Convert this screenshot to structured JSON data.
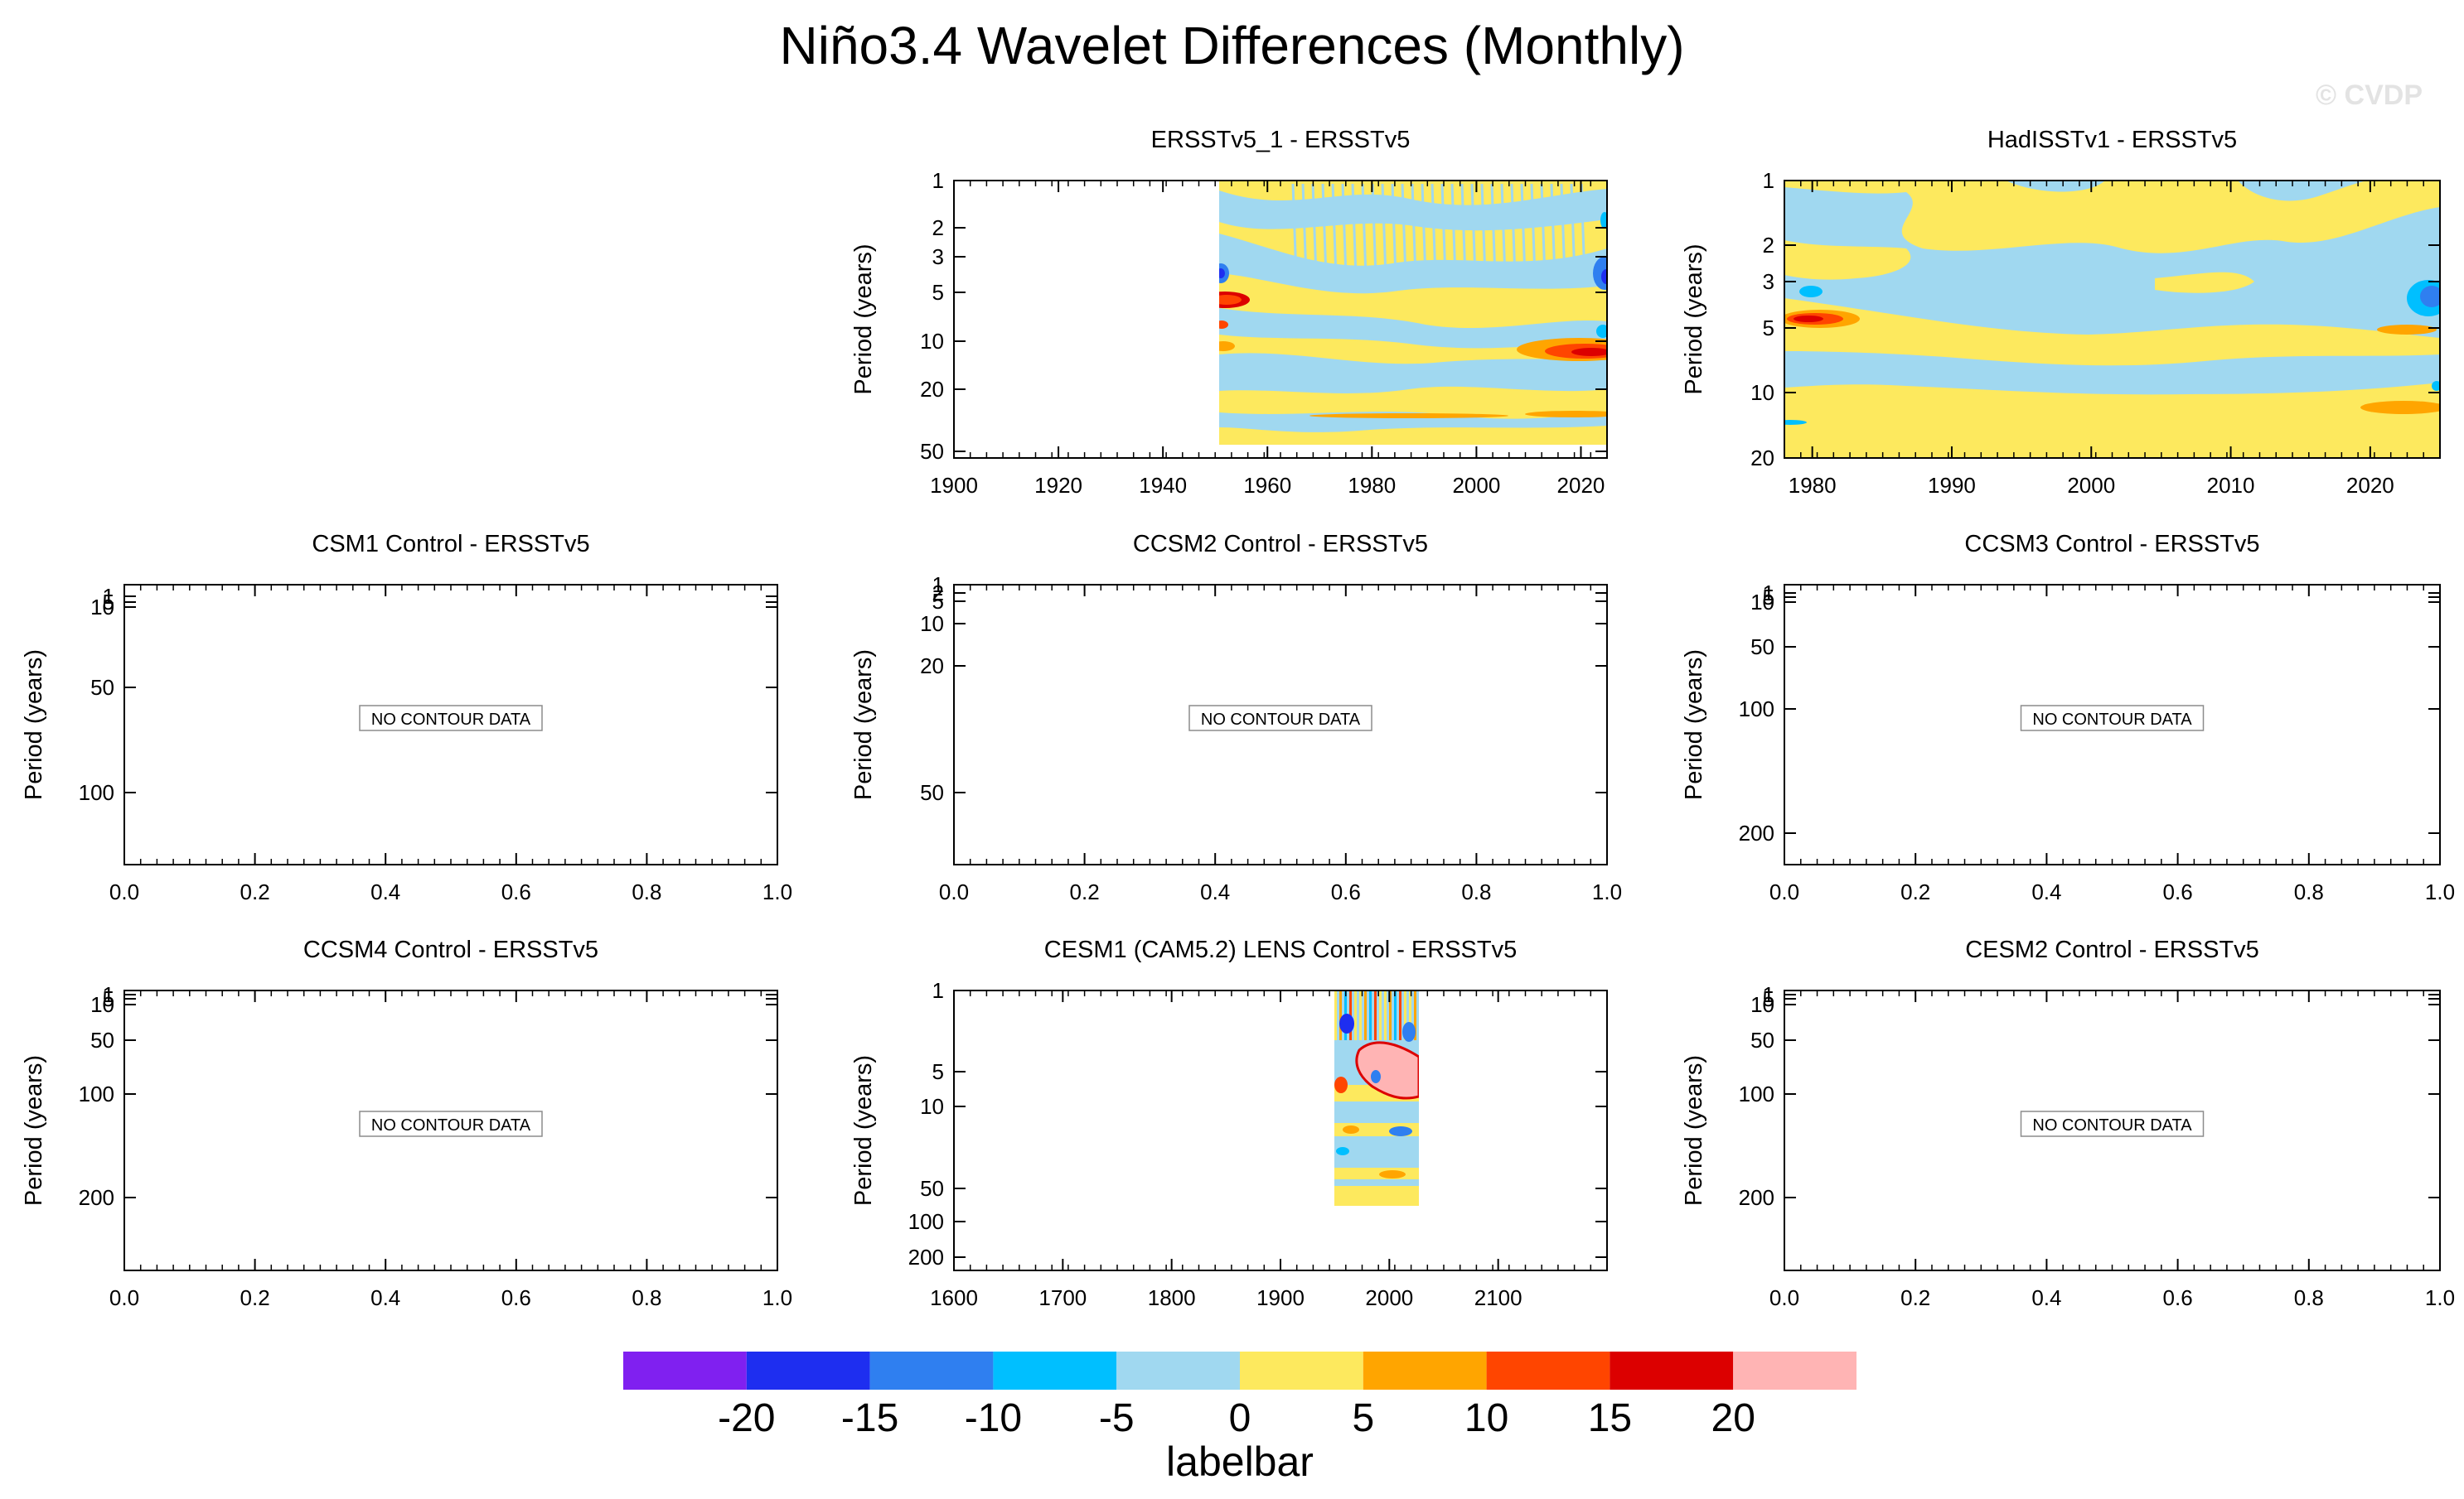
{
  "title": "Niño3.4 Wavelet Differences (Monthly)",
  "watermark": "© CVDP",
  "chart_data": [
    {
      "type": "heatmap",
      "title": "ERSSTv5_1 - ERSSTv5",
      "ylabel": "Period (years)",
      "x_ticks": [
        "1900",
        "1920",
        "1940",
        "1960",
        "1980",
        "2000",
        "2020"
      ],
      "y_ticks": [
        "1",
        "2",
        "3",
        "5",
        "10",
        "20",
        "50"
      ],
      "xlim": [
        1900,
        2025
      ],
      "ylim": [
        1,
        55
      ],
      "y_scale": "log",
      "y_inverted": true,
      "data_x_range": [
        1950,
        2025
      ]
    },
    {
      "type": "heatmap",
      "title": "HadISSTv1 - ERSSTv5",
      "ylabel": "Period (years)",
      "x_ticks": [
        "1980",
        "1990",
        "2000",
        "2010",
        "2020"
      ],
      "y_ticks": [
        "1",
        "2",
        "3",
        "5",
        "10",
        "20"
      ],
      "xlim": [
        1978,
        2025
      ],
      "ylim": [
        1,
        21
      ],
      "y_scale": "log",
      "y_inverted": true,
      "data_x_range": [
        1978,
        2025
      ]
    },
    {
      "type": "heatmap",
      "title": "CSM1 Control - ERSSTv5",
      "ylabel": "Period (years)",
      "x_ticks": [
        "0.0",
        "0.2",
        "0.4",
        "0.6",
        "0.8",
        "1.0"
      ],
      "y_ticks": [
        "1",
        "5",
        "10",
        "50",
        "100"
      ],
      "xlim": [
        0,
        1
      ],
      "ylim": [
        1,
        200
      ],
      "message": "NO CONTOUR DATA"
    },
    {
      "type": "heatmap",
      "title": "CCSM2 Control - ERSSTv5",
      "ylabel": "Period (years)",
      "x_ticks": [
        "0.0",
        "0.2",
        "0.4",
        "0.6",
        "0.8",
        "1.0"
      ],
      "y_ticks": [
        "1",
        "2",
        "5",
        "10",
        "20",
        "50"
      ],
      "xlim": [
        0,
        1
      ],
      "ylim": [
        1,
        80
      ],
      "message": "NO CONTOUR DATA"
    },
    {
      "type": "heatmap",
      "title": "CCSM3 Control - ERSSTv5",
      "ylabel": "Period (years)",
      "x_ticks": [
        "0.0",
        "0.2",
        "0.4",
        "0.6",
        "0.8",
        "1.0"
      ],
      "y_ticks": [
        "1",
        "5",
        "10",
        "50",
        "100",
        "200"
      ],
      "xlim": [
        0,
        1
      ],
      "ylim": [
        1,
        250
      ],
      "message": "NO CONTOUR DATA"
    },
    {
      "type": "heatmap",
      "title": "CCSM4 Control - ERSSTv5",
      "ylabel": "Period (years)",
      "x_ticks": [
        "0.0",
        "0.2",
        "0.4",
        "0.6",
        "0.8",
        "1.0"
      ],
      "y_ticks": [
        "1",
        "5",
        "10",
        "50",
        "100",
        "200"
      ],
      "xlim": [
        0,
        1
      ],
      "ylim": [
        1,
        300
      ],
      "message": "NO CONTOUR DATA"
    },
    {
      "type": "heatmap",
      "title": "CESM1 (CAM5.2) LENS Control - ERSSTv5",
      "ylabel": "Period (years)",
      "x_ticks": [
        "1600",
        "1700",
        "1800",
        "1900",
        "2000",
        "2100"
      ],
      "y_ticks": [
        "1",
        "5",
        "10",
        "50",
        "100",
        "200"
      ],
      "xlim": [
        1600,
        2200
      ],
      "ylim": [
        1,
        300
      ],
      "y_scale": "log",
      "y_inverted": true,
      "data_x_range": [
        1950,
        2025
      ]
    },
    {
      "type": "heatmap",
      "title": "CESM2 Control - ERSSTv5",
      "ylabel": "Period (years)",
      "x_ticks": [
        "0.0",
        "0.2",
        "0.4",
        "0.6",
        "0.8",
        "1.0"
      ],
      "y_ticks": [
        "1",
        "5",
        "10",
        "50",
        "100",
        "200"
      ],
      "xlim": [
        0,
        1
      ],
      "ylim": [
        1,
        300
      ],
      "message": "NO CONTOUR DATA"
    }
  ],
  "labelbar": {
    "title": "labelbar",
    "levels": [
      "-20",
      "-15",
      "-10",
      "-5",
      "0",
      "5",
      "10",
      "15",
      "20"
    ],
    "colors": [
      "#8020f0",
      "#1e2ef0",
      "#2f7ff0",
      "#00bfff",
      "#a0d8f0",
      "#fde95e",
      "#ffa500",
      "#ff4500",
      "#dc0000",
      "#ffb4b4"
    ]
  }
}
